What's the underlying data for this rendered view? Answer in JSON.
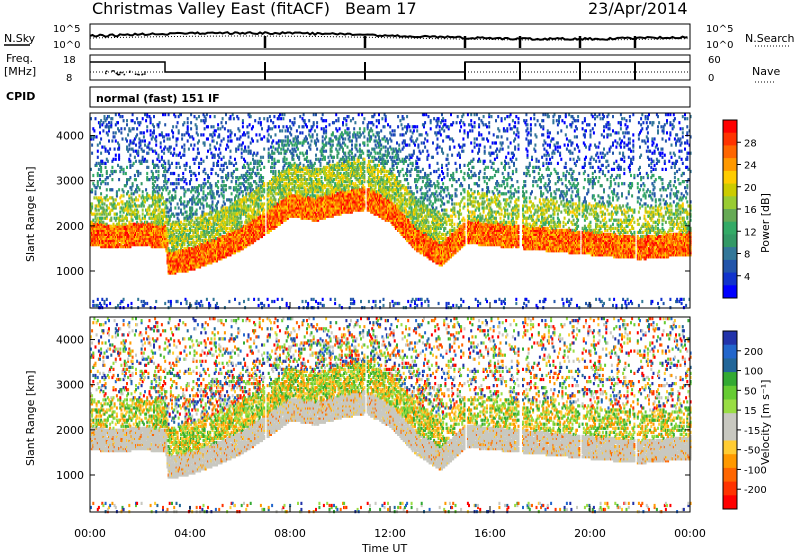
{
  "header": {
    "station": "Christmas Valley East (fitACF)",
    "beam": "Beam 17",
    "date": "23/Apr/2014"
  },
  "strip_labels": {
    "nsky": "N.Sky",
    "nsearch": "N.Search",
    "freq": "Freq.",
    "freq_unit": "[MHz]",
    "nave": "Nave",
    "cpid": "CPID",
    "cpid_value": "normal (fast) 151 IF"
  },
  "strip_ticks": {
    "noise_left": [
      "10^5",
      "10^0"
    ],
    "noise_right": [
      "10^5",
      "10^0"
    ],
    "freq_left": [
      "18",
      "8"
    ],
    "freq_right": [
      "60",
      "0"
    ]
  },
  "colorbars": {
    "power": {
      "label": "Power [dB]",
      "ticks": [
        "28",
        "24",
        "20",
        "16",
        "12",
        "8",
        "4"
      ],
      "colors": [
        "#ff0000",
        "#ff3300",
        "#ff6600",
        "#ff9900",
        "#ffcc00",
        "#cccc00",
        "#99cc33",
        "#66aa55",
        "#33aa66",
        "#339966",
        "#337799",
        "#2255aa",
        "#1133cc",
        "#0000ff"
      ]
    },
    "velocity": {
      "label": "Velocity [m s⁻¹]",
      "ticks": [
        "200",
        "100",
        "50",
        "15",
        "-15",
        "-50",
        "-100",
        "-200"
      ],
      "colors": [
        "#2233aa",
        "#2266cc",
        "#226699",
        "#33aa33",
        "#66cc33",
        "#99dd44",
        "#c8c8c0",
        "#c8c8c0",
        "#ffcc33",
        "#ff9900",
        "#ff6600",
        "#ff3300",
        "#ff0000"
      ]
    }
  },
  "axes": {
    "ylabel": "Slant Range [km]",
    "xlabel": "Time UT",
    "x_ticks": [
      "00:00",
      "04:00",
      "08:00",
      "12:00",
      "16:00",
      "20:00",
      "00:00"
    ],
    "y_ticks": [
      "1000",
      "2000",
      "3000",
      "4000"
    ]
  },
  "chart_data": {
    "type": "heatmap",
    "x_range_hours": [
      0,
      24
    ],
    "y_range_km": [
      180,
      4500
    ],
    "data_gaps_hours": [
      7.0,
      11.0,
      15.0,
      17.2,
      19.6,
      21.8
    ],
    "main_echo_band_km": [
      [
        0.0,
        1800
      ],
      [
        1.0,
        1750
      ],
      [
        2.0,
        1800
      ],
      [
        3.0,
        1750
      ],
      [
        3.1,
        1150
      ],
      [
        4.0,
        1250
      ],
      [
        5.0,
        1450
      ],
      [
        6.0,
        1700
      ],
      [
        7.0,
        2050
      ],
      [
        8.0,
        2450
      ],
      [
        9.0,
        2350
      ],
      [
        10.0,
        2500
      ],
      [
        11.0,
        2600
      ],
      [
        12.0,
        2300
      ],
      [
        13.0,
        1700
      ],
      [
        14.0,
        1350
      ],
      [
        15.0,
        1850
      ],
      [
        16.0,
        1800
      ],
      [
        17.0,
        1750
      ],
      [
        18.0,
        1700
      ],
      [
        19.0,
        1650
      ],
      [
        20.0,
        1600
      ],
      [
        22.0,
        1500
      ],
      [
        23.0,
        1550
      ],
      [
        24.0,
        1600
      ]
    ]
  }
}
